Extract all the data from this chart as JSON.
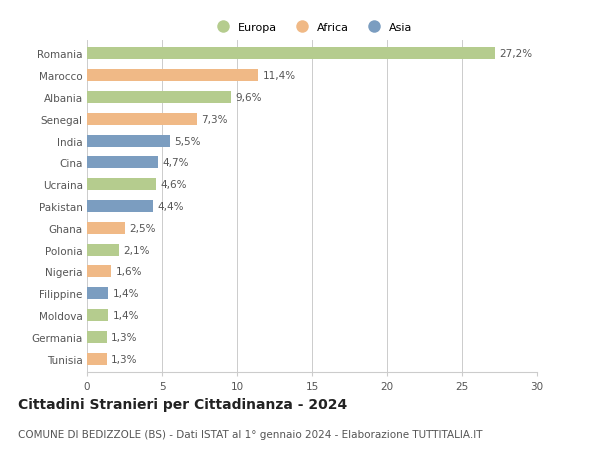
{
  "countries": [
    "Romania",
    "Marocco",
    "Albania",
    "Senegal",
    "India",
    "Cina",
    "Ucraina",
    "Pakistan",
    "Ghana",
    "Polonia",
    "Nigeria",
    "Filippine",
    "Moldova",
    "Germania",
    "Tunisia"
  ],
  "values": [
    27.2,
    11.4,
    9.6,
    7.3,
    5.5,
    4.7,
    4.6,
    4.4,
    2.5,
    2.1,
    1.6,
    1.4,
    1.4,
    1.3,
    1.3
  ],
  "labels": [
    "27,2%",
    "11,4%",
    "9,6%",
    "7,3%",
    "5,5%",
    "4,7%",
    "4,6%",
    "4,4%",
    "2,5%",
    "2,1%",
    "1,6%",
    "1,4%",
    "1,4%",
    "1,3%",
    "1,3%"
  ],
  "continents": [
    "Europa",
    "Africa",
    "Europa",
    "Africa",
    "Asia",
    "Asia",
    "Europa",
    "Asia",
    "Africa",
    "Europa",
    "Africa",
    "Asia",
    "Europa",
    "Europa",
    "Africa"
  ],
  "colors": {
    "Europa": "#b5cc8e",
    "Africa": "#f0b986",
    "Asia": "#7b9dc0"
  },
  "legend": [
    "Europa",
    "Africa",
    "Asia"
  ],
  "legend_colors": [
    "#b5cc8e",
    "#f0b986",
    "#7b9dc0"
  ],
  "xlim": [
    0,
    30
  ],
  "xticks": [
    0,
    5,
    10,
    15,
    20,
    25,
    30
  ],
  "title": "Cittadini Stranieri per Cittadinanza - 2024",
  "subtitle": "COMUNE DI BEDIZZOLE (BS) - Dati ISTAT al 1° gennaio 2024 - Elaborazione TUTTITALIA.IT",
  "background_color": "#ffffff",
  "bar_height": 0.55,
  "grid_color": "#cccccc",
  "label_fontsize": 7.5,
  "tick_fontsize": 7.5,
  "title_fontsize": 10,
  "subtitle_fontsize": 7.5
}
